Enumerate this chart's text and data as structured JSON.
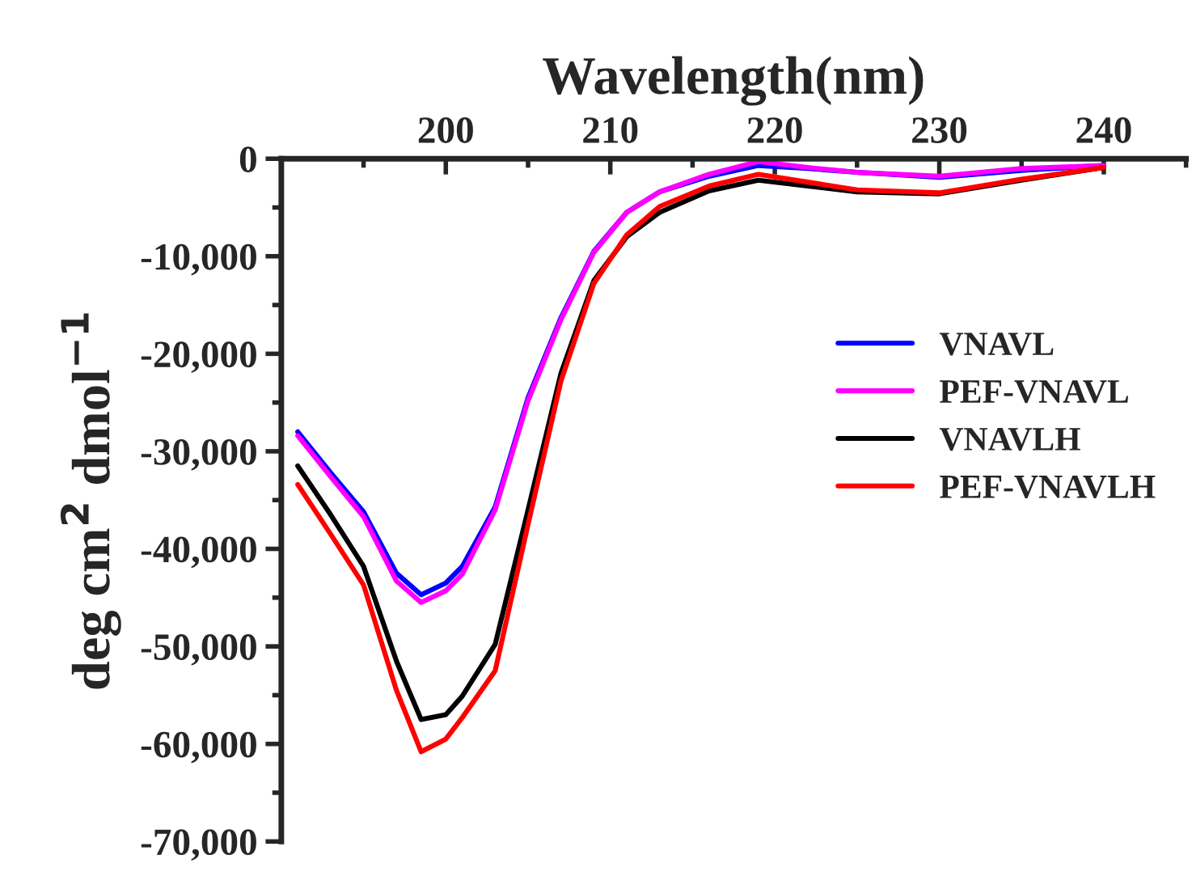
{
  "chart_data": {
    "type": "line",
    "xlabel": "Wavelength(nm)",
    "ylabel": "deg cm$^{2}$ dmol$^{−1}$",
    "xlim": [
      190,
      245
    ],
    "xticks": [
      200,
      210,
      220,
      230,
      240
    ],
    "ylim": [
      -70000,
      0
    ],
    "yticks": [
      {
        "value": -70000,
        "label": "-70,000"
      },
      {
        "value": -60000,
        "label": "-60,000"
      },
      {
        "value": -50000,
        "label": "-50,000"
      },
      {
        "value": -40000,
        "label": "-40,000"
      },
      {
        "value": -30000,
        "label": "-30,000"
      },
      {
        "value": -20000,
        "label": "-20,000"
      },
      {
        "value": -10000,
        "label": "-10,000"
      },
      0
    ],
    "grid": false,
    "legend": "right",
    "line_style": "solid",
    "marker": "none",
    "x": [
      191,
      193,
      195,
      197,
      198.5,
      200,
      201,
      203,
      205,
      207,
      209,
      211,
      213,
      216,
      219,
      222,
      225,
      230,
      235,
      240
    ],
    "series": [
      {
        "name": "VNAVL",
        "color": "#0000ff",
        "values": [
          -28000,
          -32200,
          -36200,
          -42500,
          -44700,
          -43500,
          -41800,
          -35700,
          -24500,
          -16300,
          -9500,
          -5500,
          -3400,
          -1800,
          -700,
          -1000,
          -1400,
          -1900,
          -1200,
          -700
        ]
      },
      {
        "name": "PEF-VNAVL",
        "color": "#ff00ff",
        "values": [
          -28400,
          -32600,
          -36700,
          -43300,
          -45500,
          -44300,
          -42600,
          -36000,
          -24800,
          -16500,
          -9600,
          -5500,
          -3400,
          -1600,
          -300,
          -900,
          -1400,
          -1800,
          -1000,
          -700
        ]
      },
      {
        "name": "VNAVLH",
        "color": "#000000",
        "values": [
          -31500,
          -36500,
          -41800,
          -51500,
          -57500,
          -57000,
          -55100,
          -49800,
          -36000,
          -22000,
          -12500,
          -8000,
          -5500,
          -3300,
          -2200,
          -2800,
          -3400,
          -3600,
          -2200,
          -900
        ]
      },
      {
        "name": "PEF-VNAVLH",
        "color": "#ff0000",
        "values": [
          -33400,
          -38500,
          -43700,
          -54500,
          -60800,
          -59500,
          -57300,
          -52500,
          -37500,
          -22800,
          -12800,
          -7800,
          -4900,
          -2800,
          -1600,
          -2400,
          -3200,
          -3500,
          -2100,
          -900
        ]
      }
    ]
  }
}
